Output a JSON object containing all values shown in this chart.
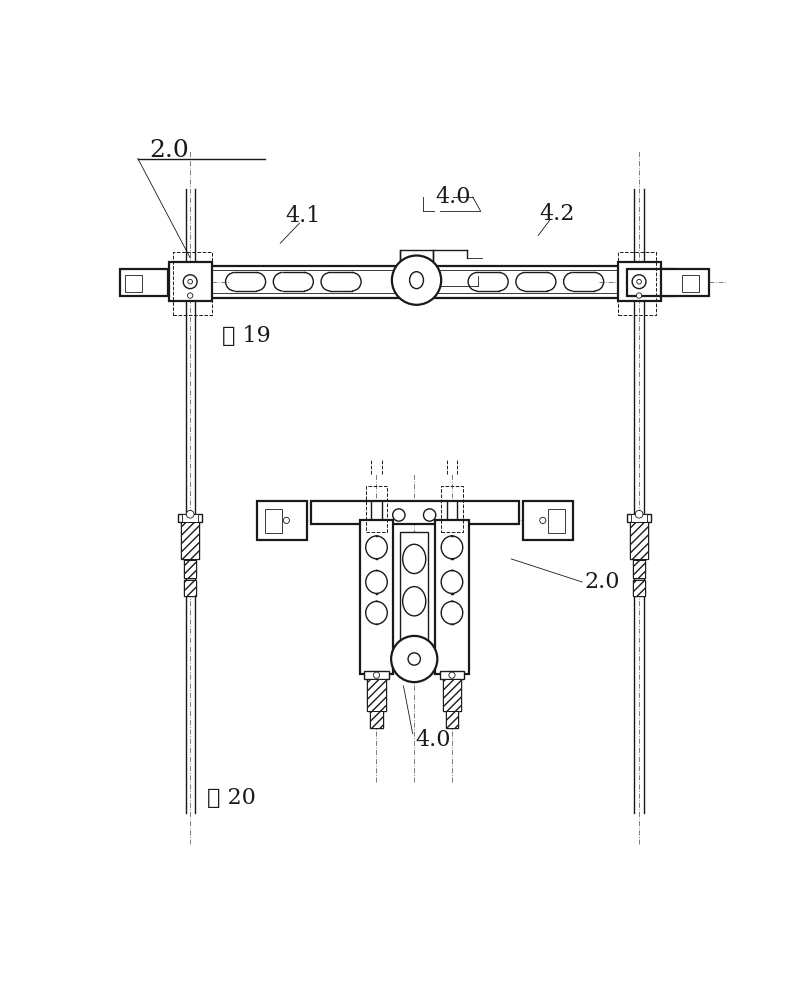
{
  "bg_color": "#ffffff",
  "line_color": "#1a1a1a",
  "fig19_label": "图 19",
  "fig20_label": "图 20",
  "label_20_top": "2.0",
  "label_41": "4.1",
  "label_40_top": "4.0",
  "label_42": "4.2",
  "label_20_bottom": "2.0",
  "label_40_bottom": "4.0"
}
